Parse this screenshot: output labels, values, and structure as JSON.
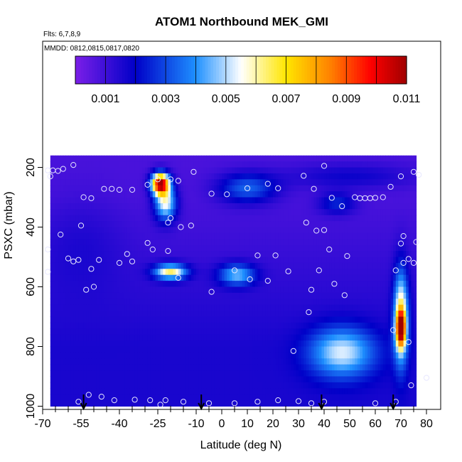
{
  "chart_data": {
    "type": "heatmap",
    "title": "ATOM1 Northbound MEK_GMI",
    "flights_label": "Flts: 6,7,8,9",
    "dates_label": "MMDD: 0812,0815,0817,0820",
    "xlabel": "Latitude (deg N)",
    "ylabel": "PSXC (mbar)",
    "xlim": [
      -70,
      80
    ],
    "ylim": [
      1000,
      120
    ],
    "x_ticks": [
      "-70",
      "-55",
      "-40",
      "-25",
      "-10",
      "0",
      "10",
      "20",
      "30",
      "40",
      "50",
      "60",
      "70",
      "80"
    ],
    "x_tick_values": [
      -70,
      -55,
      -40,
      -25,
      -10,
      0,
      10,
      20,
      30,
      40,
      50,
      60,
      70,
      80
    ],
    "x_minor_ticks": [
      -65,
      -60,
      -50,
      -45,
      -35,
      -30,
      -20,
      -15,
      -5,
      5,
      15,
      25,
      35,
      45,
      55,
      65,
      75
    ],
    "y_ticks": [
      "200",
      "400",
      "600",
      "800",
      "1000"
    ],
    "y_tick_values": [
      200,
      400,
      600,
      800,
      1000
    ],
    "colorbar": {
      "ticks": [
        "0.001",
        "0.003",
        "0.005",
        "0.007",
        "0.009",
        "0.011"
      ],
      "tick_values": [
        0.001,
        0.003,
        0.005,
        0.007,
        0.009,
        0.011
      ],
      "range": [
        0,
        0.011
      ],
      "colors": [
        "#7b1fe8",
        "#0000c8",
        "#1e90ff",
        "#ffffff",
        "#ffe600",
        "#ff7f00",
        "#ff0000",
        "#a00000"
      ]
    },
    "flight_markers_lat": [
      -54,
      -8,
      39,
      67
    ],
    "background_value": 0.0008,
    "field_extent": {
      "lat": [
        -67,
        76
      ],
      "pres": [
        160,
        1000
      ]
    },
    "features": [
      {
        "lat": -24,
        "pres": 255,
        "lat_sd": 2.5,
        "pres_sd": 25,
        "value": 0.0105
      },
      {
        "lat": -22,
        "pres": 320,
        "lat_sd": 3,
        "pres_sd": 40,
        "value": 0.0055
      },
      {
        "lat": -20,
        "pres": 550,
        "lat_sd": 4.5,
        "pres_sd": 18,
        "value": 0.006
      },
      {
        "lat": 6,
        "pres": 560,
        "lat_sd": 5,
        "pres_sd": 25,
        "value": 0.0042
      },
      {
        "lat": 10,
        "pres": 270,
        "lat_sd": 8,
        "pres_sd": 35,
        "value": 0.0033
      },
      {
        "lat": 47,
        "pres": 820,
        "lat_sd": 9,
        "pres_sd": 60,
        "value": 0.0045
      },
      {
        "lat": 70,
        "pres": 700,
        "lat_sd": 2,
        "pres_sd": 110,
        "value": 0.006
      },
      {
        "lat": 70,
        "pres": 740,
        "lat_sd": 1.2,
        "pres_sd": 40,
        "value": 0.0078
      },
      {
        "lat": 45,
        "pres": 320,
        "lat_sd": 5,
        "pres_sd": 25,
        "value": 0.0025
      },
      {
        "lat": 50,
        "pres": 230,
        "lat_sd": 18,
        "pres_sd": 30,
        "value": 0.0018
      },
      {
        "lat": -55,
        "pres": 450,
        "lat_sd": 12,
        "pres_sd": 120,
        "value": 0.0013
      }
    ],
    "points": [
      [
        -68,
        210
      ],
      [
        -66,
        210
      ],
      [
        -64,
        212
      ],
      [
        -62,
        205
      ],
      [
        -58,
        192
      ],
      [
        -67,
        230
      ],
      [
        -56,
        985
      ],
      [
        -52,
        962
      ],
      [
        -47,
        968
      ],
      [
        -42,
        980
      ],
      [
        -34,
        978
      ],
      [
        -28,
        980
      ],
      [
        -24,
        995
      ],
      [
        -22,
        980
      ],
      [
        -15,
        985
      ],
      [
        -5,
        990
      ],
      [
        5,
        990
      ],
      [
        14,
        985
      ],
      [
        22,
        980
      ],
      [
        30,
        983
      ],
      [
        35,
        990
      ],
      [
        40,
        985
      ],
      [
        60,
        990
      ],
      [
        68,
        985
      ],
      [
        -46,
        272
      ],
      [
        -43,
        272
      ],
      [
        -40,
        275
      ],
      [
        -35,
        275
      ],
      [
        -29,
        258
      ],
      [
        -25,
        240
      ],
      [
        -20,
        240
      ],
      [
        -17,
        245
      ],
      [
        -11,
        215
      ],
      [
        -4,
        288
      ],
      [
        2,
        290
      ],
      [
        10,
        270
      ],
      [
        18,
        255
      ],
      [
        22,
        270
      ],
      [
        32,
        228
      ],
      [
        36,
        272
      ],
      [
        40,
        195
      ],
      [
        43,
        302
      ],
      [
        47,
        330
      ],
      [
        52,
        300
      ],
      [
        54,
        303
      ],
      [
        56,
        303
      ],
      [
        58,
        303
      ],
      [
        60,
        302
      ],
      [
        63,
        300
      ],
      [
        66,
        265
      ],
      [
        70,
        230
      ],
      [
        75,
        215
      ],
      [
        77,
        225
      ],
      [
        -54,
        300
      ],
      [
        -51,
        303
      ],
      [
        -21,
        385
      ],
      [
        -20,
        370
      ],
      [
        -16,
        400
      ],
      [
        -12,
        395
      ],
      [
        33,
        385
      ],
      [
        37,
        412
      ],
      [
        40,
        410
      ],
      [
        71,
        430
      ],
      [
        76,
        450
      ],
      [
        -55,
        395
      ],
      [
        -63,
        425
      ],
      [
        -68,
        475
      ],
      [
        -29,
        453
      ],
      [
        -27,
        475
      ],
      [
        -37,
        490
      ],
      [
        -40,
        520
      ],
      [
        -35,
        515
      ],
      [
        -21,
        480
      ],
      [
        -60,
        505
      ],
      [
        -58,
        515
      ],
      [
        -56,
        510
      ],
      [
        -51,
        540
      ],
      [
        -48,
        510
      ],
      [
        -68,
        550
      ],
      [
        14,
        495
      ],
      [
        21,
        495
      ],
      [
        49,
        497
      ],
      [
        42,
        475
      ],
      [
        38,
        545
      ],
      [
        44,
        590
      ],
      [
        48,
        628
      ],
      [
        68,
        545
      ],
      [
        71,
        520
      ],
      [
        73,
        507
      ],
      [
        75,
        520
      ],
      [
        70,
        455
      ],
      [
        -53,
        610
      ],
      [
        -50,
        600
      ],
      [
        -17,
        570
      ],
      [
        -4,
        617
      ],
      [
        5,
        545
      ],
      [
        11,
        575
      ],
      [
        18,
        580
      ],
      [
        26,
        548
      ],
      [
        35,
        610
      ],
      [
        67,
        745
      ],
      [
        73,
        785
      ],
      [
        74,
        930
      ],
      [
        80,
        905
      ],
      [
        34,
        685
      ],
      [
        28,
        815
      ]
    ]
  }
}
